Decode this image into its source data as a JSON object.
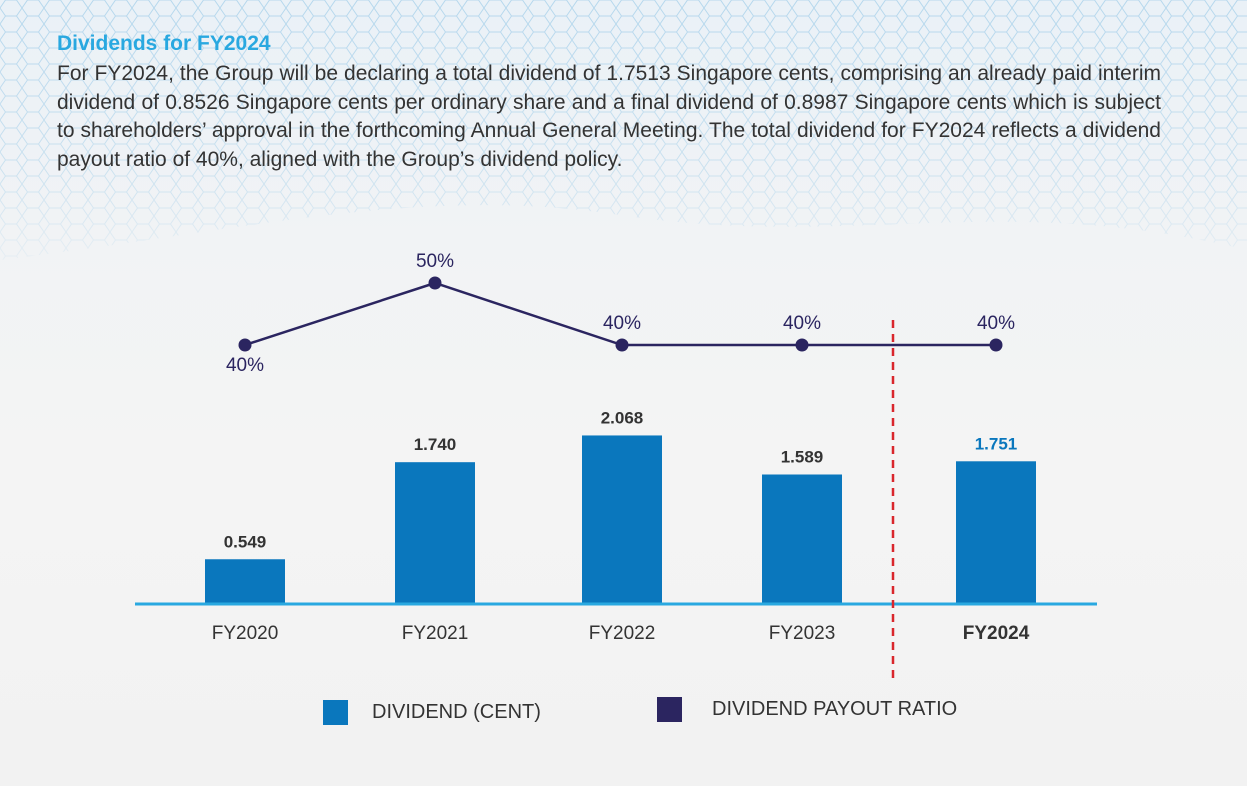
{
  "heading": "Dividends for FY2024",
  "paragraph": "For FY2024, the Group will be declaring a total dividend of 1.7513 Singapore cents, comprising an already paid interim dividend of 0.8526 Singapore cents per ordinary share and a final dividend of 0.8987 Singapore cents which is subject to shareholders’ approval in the forthcoming Annual General Meeting. The total dividend for FY2024 reflects a dividend payout ratio of 40%, aligned with the Group’s dividend policy.",
  "colors": {
    "heading": "#29a8e0",
    "bar": "#0a77bd",
    "highlight_label": "#0a77bd",
    "line": "#2b2560",
    "axis": "#29a8e0",
    "divider": "#d9262c"
  },
  "chart_data": {
    "type": "bar+line",
    "categories": [
      "FY2020",
      "FY2021",
      "FY2022",
      "FY2023",
      "FY2024"
    ],
    "highlighted_category": "FY2024",
    "bar_series": {
      "name": "DIVIDEND (CENT)",
      "values": [
        0.549,
        1.74,
        2.068,
        1.589,
        1.751
      ],
      "labels": [
        "0.549",
        "1.740",
        "2.068",
        "1.589",
        "1.751"
      ]
    },
    "line_series": {
      "name": "DIVIDEND PAYOUT RATIO",
      "values": [
        40,
        50,
        40,
        40,
        40
      ],
      "labels": [
        "40%",
        "50%",
        "40%",
        "40%",
        "40%"
      ]
    },
    "divider_before": "FY2024",
    "legend_placement": "bottom",
    "grid": false
  }
}
